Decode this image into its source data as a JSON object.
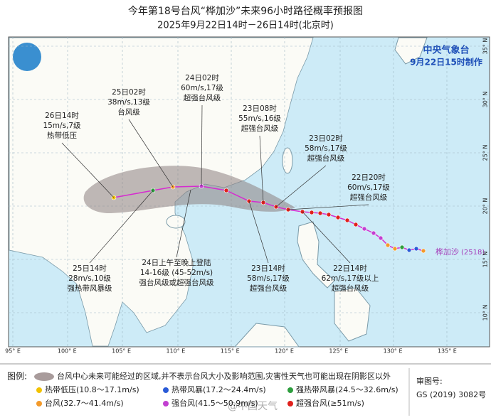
{
  "header": {
    "title": "今年第18号台风“桦加沙”未来96小时路径概率预报图",
    "subtitle": "2025年9月22日14时－26日14时(北京时)"
  },
  "agency": {
    "name": "中央气象台",
    "issued": "9月22日15时制作"
  },
  "typhoon": {
    "name": "桦加沙",
    "code": "(2518)"
  },
  "forecast_labels": [
    {
      "lines": [
        "26日14时",
        "15m/s,7级",
        "热带低压"
      ]
    },
    {
      "lines": [
        "25日02时",
        "38m/s,13级",
        "台风级"
      ]
    },
    {
      "lines": [
        "24日02时",
        "60m/s,17级",
        "超强台风级"
      ]
    },
    {
      "lines": [
        "23日08时",
        "55m/s,16级",
        "超强台风级"
      ]
    },
    {
      "lines": [
        "23日02时",
        "58m/s,17级",
        "超强台风级"
      ]
    },
    {
      "lines": [
        "22日20时",
        "60m/s,17级",
        "超强台风级"
      ]
    },
    {
      "lines": [
        "22日14时",
        "62m/s,17级以上",
        "超强台风级"
      ]
    },
    {
      "lines": [
        "23日14时",
        "58m/s,17级",
        "超强台风级"
      ]
    },
    {
      "lines": [
        "24日上午至晚上登陆",
        "14-16级 (45-52m/s)",
        "强台风级或超强台风级"
      ]
    },
    {
      "lines": [
        "25日14时",
        "28m/s,10级",
        "强热带风暴级"
      ]
    }
  ],
  "longitude_labels": [
    "95° E",
    "100° E",
    "105° E",
    "110° E",
    "115° E",
    "120° E",
    "125° E",
    "130° E",
    "135° E"
  ],
  "latitude_labels": [
    "35° N",
    "30° N",
    "25° N",
    "20° N",
    "15° N",
    "10° N"
  ],
  "legend": {
    "title": "图例:",
    "cone": "台风中心未来可能经过的区域,并不表示台风大小及影响范围,灾害性天气也可能出现在阴影区以外",
    "items": [
      {
        "label": "热带低压(10.8～17.1m/s)",
        "color": "#f2c200"
      },
      {
        "label": "热带风暴(17.2～24.4m/s)",
        "color": "#2a5bd7"
      },
      {
        "label": "强热带风暴(24.5～32.6m/s)",
        "color": "#2e9e3e"
      },
      {
        "label": "台风(32.7～41.4m/s)",
        "color": "#f39a2b"
      },
      {
        "label": "强台风(41.5～50.9m/s)",
        "color": "#c23fd1"
      },
      {
        "label": "超强台风(≥51m/s)",
        "color": "#e0201c"
      }
    ]
  },
  "review": {
    "title": "审图号:",
    "number": "GS (2019) 3082号"
  },
  "watermark": "@中国天气"
}
